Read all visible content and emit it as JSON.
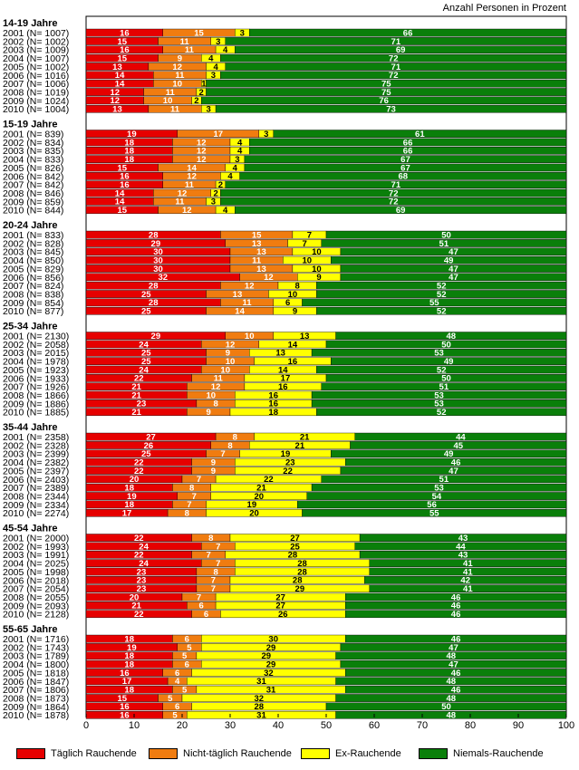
{
  "chart_data": {
    "type": "bar",
    "stacked": true,
    "orientation": "horizontal",
    "unit_label": "Anzahl Personen in Prozent",
    "xlim": [
      0,
      100
    ],
    "x_ticks": [
      "0",
      "10",
      "20",
      "30",
      "40",
      "50",
      "60",
      "70",
      "80",
      "90",
      "100"
    ],
    "series": [
      {
        "name": "Täglich Rauchende",
        "color": "#e60000"
      },
      {
        "name": "Nicht-täglich Rauchende",
        "color": "#f07c10"
      },
      {
        "name": "Ex-Rauchende",
        "color": "#ffff00"
      },
      {
        "name": "Niemals-Rauchende",
        "color": "#0a7f0a"
      }
    ],
    "groups": [
      {
        "title": "14-19 Jahre",
        "rows": [
          {
            "label": "2001 (N= 1007)",
            "values": [
              16,
              15,
              3,
              66
            ]
          },
          {
            "label": "2002 (N= 1002)",
            "values": [
              15,
              11,
              3,
              71
            ]
          },
          {
            "label": "2003 (N= 1009)",
            "values": [
              16,
              11,
              4,
              69
            ]
          },
          {
            "label": "2004 (N= 1007)",
            "values": [
              15,
              9,
              4,
              72
            ]
          },
          {
            "label": "2005 (N= 1002)",
            "values": [
              13,
              12,
              4,
              71
            ]
          },
          {
            "label": "2006 (N= 1016)",
            "values": [
              14,
              11,
              3,
              72
            ]
          },
          {
            "label": "2007 (N= 1006)",
            "values": [
              14,
              10,
              1,
              75
            ]
          },
          {
            "label": "2008 (N= 1019)",
            "values": [
              12,
              11,
              2,
              75
            ]
          },
          {
            "label": "2009 (N= 1024)",
            "values": [
              12,
              10,
              2,
              76
            ]
          },
          {
            "label": "2010 (N= 1004)",
            "values": [
              13,
              11,
              3,
              73
            ]
          }
        ]
      },
      {
        "title": "15-19 Jahre",
        "rows": [
          {
            "label": "2001 (N= 839)",
            "values": [
              19,
              17,
              3,
              61
            ]
          },
          {
            "label": "2002 (N= 834)",
            "values": [
              18,
              12,
              4,
              66
            ]
          },
          {
            "label": "2003 (N= 835)",
            "values": [
              18,
              12,
              4,
              66
            ]
          },
          {
            "label": "2004 (N= 833)",
            "values": [
              18,
              12,
              3,
              67
            ]
          },
          {
            "label": "2005 (N= 826)",
            "values": [
              15,
              14,
              4,
              67
            ]
          },
          {
            "label": "2006 (N= 842)",
            "values": [
              16,
              12,
              4,
              68
            ]
          },
          {
            "label": "2007 (N= 842)",
            "values": [
              16,
              11,
              2,
              71
            ]
          },
          {
            "label": "2008 (N= 846)",
            "values": [
              14,
              12,
              2,
              72
            ]
          },
          {
            "label": "2009 (N= 859)",
            "values": [
              14,
              11,
              3,
              72
            ]
          },
          {
            "label": "2010 (N= 844)",
            "values": [
              15,
              12,
              4,
              69
            ]
          }
        ]
      },
      {
        "title": "20-24 Jahre",
        "rows": [
          {
            "label": "2001 (N= 833)",
            "values": [
              28,
              15,
              7,
              50
            ]
          },
          {
            "label": "2002 (N= 828)",
            "values": [
              29,
              13,
              7,
              51
            ]
          },
          {
            "label": "2003 (N= 845)",
            "values": [
              30,
              13,
              10,
              47
            ]
          },
          {
            "label": "2004 (N= 850)",
            "values": [
              30,
              11,
              10,
              49
            ]
          },
          {
            "label": "2005 (N= 829)",
            "values": [
              30,
              13,
              10,
              47
            ]
          },
          {
            "label": "2006 (N= 856)",
            "values": [
              32,
              12,
              9,
              47
            ]
          },
          {
            "label": "2007 (N= 824)",
            "values": [
              28,
              12,
              8,
              52
            ]
          },
          {
            "label": "2008 (N= 838)",
            "values": [
              25,
              13,
              10,
              52
            ]
          },
          {
            "label": "2009 (N= 854)",
            "values": [
              28,
              11,
              6,
              55
            ]
          },
          {
            "label": "2010 (N= 877)",
            "values": [
              25,
              14,
              9,
              52
            ]
          }
        ]
      },
      {
        "title": "25-34 Jahre",
        "rows": [
          {
            "label": "2001 (N= 2130)",
            "values": [
              29,
              10,
              13,
              48
            ]
          },
          {
            "label": "2002 (N= 2058)",
            "values": [
              24,
              12,
              14,
              50
            ]
          },
          {
            "label": "2003 (N= 2015)",
            "values": [
              25,
              9,
              13,
              53
            ]
          },
          {
            "label": "2004 (N= 1978)",
            "values": [
              25,
              10,
              16,
              49
            ]
          },
          {
            "label": "2005 (N= 1923)",
            "values": [
              24,
              10,
              14,
              52
            ]
          },
          {
            "label": "2006 (N= 1933)",
            "values": [
              22,
              11,
              17,
              50
            ]
          },
          {
            "label": "2007 (N= 1926)",
            "values": [
              21,
              12,
              16,
              51
            ]
          },
          {
            "label": "2008 (N= 1866)",
            "values": [
              21,
              10,
              16,
              53
            ]
          },
          {
            "label": "2009 (N= 1886)",
            "values": [
              23,
              8,
              16,
              53
            ]
          },
          {
            "label": "2010 (N= 1885)",
            "values": [
              21,
              9,
              18,
              52
            ]
          }
        ]
      },
      {
        "title": "35-44 Jahre",
        "rows": [
          {
            "label": "2001 (N= 2358)",
            "values": [
              27,
              8,
              21,
              44
            ]
          },
          {
            "label": "2002 (N= 2328)",
            "values": [
              26,
              8,
              21,
              45
            ]
          },
          {
            "label": "2003 (N= 2399)",
            "values": [
              25,
              7,
              19,
              49
            ]
          },
          {
            "label": "2004 (N= 2382)",
            "values": [
              22,
              9,
              23,
              46
            ]
          },
          {
            "label": "2005 (N= 2397)",
            "values": [
              22,
              9,
              22,
              47
            ]
          },
          {
            "label": "2006 (N= 2403)",
            "values": [
              20,
              7,
              22,
              51
            ]
          },
          {
            "label": "2007 (N= 2389)",
            "values": [
              18,
              8,
              21,
              53
            ]
          },
          {
            "label": "2008 (N= 2344)",
            "values": [
              19,
              7,
              20,
              54
            ]
          },
          {
            "label": "2009 (N= 2334)",
            "values": [
              18,
              7,
              19,
              56
            ]
          },
          {
            "label": "2010 (N= 2274)",
            "values": [
              17,
              8,
              20,
              55
            ]
          }
        ]
      },
      {
        "title": "45-54 Jahre",
        "rows": [
          {
            "label": "2001 (N= 2000)",
            "values": [
              22,
              8,
              27,
              43
            ]
          },
          {
            "label": "2002 (N= 1993)",
            "values": [
              24,
              7,
              25,
              44
            ]
          },
          {
            "label": "2003 (N= 1991)",
            "values": [
              22,
              7,
              28,
              43
            ]
          },
          {
            "label": "2004 (N= 2025)",
            "values": [
              24,
              7,
              28,
              41
            ]
          },
          {
            "label": "2005 (N= 1998)",
            "values": [
              23,
              8,
              28,
              41
            ]
          },
          {
            "label": "2006 (N= 2018)",
            "values": [
              23,
              7,
              28,
              42
            ]
          },
          {
            "label": "2007 (N= 2054)",
            "values": [
              23,
              7,
              29,
              41
            ]
          },
          {
            "label": "2008 (N= 2055)",
            "values": [
              20,
              7,
              27,
              46
            ]
          },
          {
            "label": "2009 (N= 2093)",
            "values": [
              21,
              6,
              27,
              46
            ]
          },
          {
            "label": "2010 (N= 2128)",
            "values": [
              22,
              6,
              26,
              46
            ]
          }
        ]
      },
      {
        "title": "55-65 Jahre",
        "rows": [
          {
            "label": "2001 (N= 1716)",
            "values": [
              18,
              6,
              30,
              46
            ]
          },
          {
            "label": "2002 (N= 1743)",
            "values": [
              19,
              5,
              29,
              47
            ]
          },
          {
            "label": "2003 (N= 1789)",
            "values": [
              18,
              5,
              29,
              48
            ]
          },
          {
            "label": "2004 (N= 1800)",
            "values": [
              18,
              6,
              29,
              47
            ]
          },
          {
            "label": "2005 (N= 1818)",
            "values": [
              16,
              6,
              32,
              46
            ]
          },
          {
            "label": "2006 (N= 1847)",
            "values": [
              17,
              4,
              31,
              48
            ]
          },
          {
            "label": "2007 (N= 1806)",
            "values": [
              18,
              5,
              31,
              46
            ]
          },
          {
            "label": "2008 (N= 1873)",
            "values": [
              15,
              5,
              32,
              48
            ]
          },
          {
            "label": "2009 (N= 1864)",
            "values": [
              16,
              6,
              28,
              50
            ]
          },
          {
            "label": "2010 (N= 1878)",
            "values": [
              16,
              5,
              31,
              48
            ]
          }
        ]
      }
    ],
    "legend_position": "bottom"
  }
}
